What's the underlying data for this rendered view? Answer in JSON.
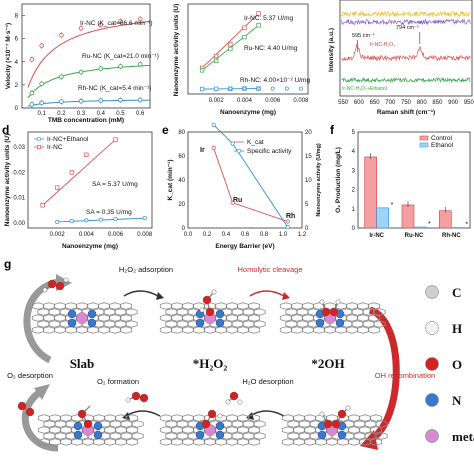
{
  "panels": {
    "a": {
      "letter": "",
      "xlabel": "TMB concentration (mM)",
      "ylabel": "Velocity (×10⁻⁷ M·s⁻¹)",
      "xticks": [
        "0.1",
        "0.2",
        "0.3",
        "0.4",
        "0.5",
        "0.6"
      ],
      "yticks": [
        "0",
        "2",
        "4",
        "6",
        "8"
      ],
      "series": [
        {
          "name": "Ir-NC (K_cat=66.6 min⁻¹)",
          "color": "#e05050",
          "values": [
            4.2,
            5.4,
            6.3,
            6.9,
            7.2,
            7.5,
            7.7
          ]
        },
        {
          "name": "Ru-NC (K_cat=21.0 min⁻¹)",
          "color": "#3aa84a",
          "values": [
            1.3,
            2.1,
            2.7,
            3.1,
            3.4,
            3.6,
            3.8
          ]
        },
        {
          "name": "Rh-NC (K_cat=5.4 min⁻¹)",
          "color": "#2f8fd0",
          "values": [
            0.3,
            0.45,
            0.55,
            0.6,
            0.65,
            0.68,
            0.7
          ]
        }
      ],
      "x": [
        0.05,
        0.1,
        0.2,
        0.3,
        0.4,
        0.5,
        0.6
      ]
    },
    "b": {
      "letter": "",
      "xlabel": "Nanoenzyme (mg)",
      "ylabel": "Nanoenzyme activity units (U)",
      "xticks": [
        "0.002",
        "0.004",
        "0.006",
        "0.008"
      ],
      "annotations": [
        "Ir-NC: 5.37 U/mg",
        "Ru-NC: 4.40 U/mg",
        "Rh-NC: 4.00×10⁻² U/mg"
      ],
      "series": [
        {
          "name": "Ir-NC",
          "color": "#e05050",
          "values": [
            0.009,
            0.014,
            0.019,
            0.026,
            0.032
          ]
        },
        {
          "name": "Ru-NC",
          "color": "#3aa84a",
          "values": [
            0.008,
            0.012,
            0.017,
            0.022,
            0.027
          ]
        },
        {
          "name": "Rh-NC",
          "color": "#2f8fd0",
          "values": [
            0.0001,
            0.0002,
            0.0002,
            0.0003,
            0.0003
          ]
        }
      ],
      "x": [
        0.001,
        0.002,
        0.003,
        0.004,
        0.005
      ]
    },
    "c": {
      "letter": "",
      "xlabel": "Raman shift (cm⁻¹)",
      "ylabel": "Intensity (a.u.)",
      "xticks": [
        "550",
        "600",
        "650",
        "700",
        "750",
        "800",
        "850",
        "900",
        "950"
      ],
      "annotations": [
        "595 cm⁻¹",
        "794 cm⁻¹",
        "Ir-NC-H₂O₂",
        "Ir-NC-H₂O₂+Ethanol"
      ]
    },
    "d": {
      "letter": "d",
      "xlabel": "Nanoenzyme (mg)",
      "ylabel": "Nanoenzyme activity units (U)",
      "xticks": [
        "0.002",
        "0.004",
        "0.006",
        "0.008"
      ],
      "yticks": [
        "0.00",
        "0.01",
        "0.02",
        "0.03"
      ],
      "legend": [
        "Ir-NC+Ethanol",
        "Ir-NC"
      ],
      "annotations": [
        "SA = 5.37 U/mg",
        "SA = 0.35 U/mg"
      ],
      "series": [
        {
          "name": "Ir-NC",
          "color": "#e05050",
          "values": [
            0.007,
            0.014,
            0.02,
            0.027,
            0.033
          ]
        },
        {
          "name": "Ir-NC+Ethanol",
          "color": "#2f8fd0",
          "values": [
            0.0004,
            0.0007,
            0.001,
            0.0013,
            0.0016,
            0.0019
          ]
        }
      ],
      "x_red": [
        0.001,
        0.002,
        0.003,
        0.004,
        0.006
      ],
      "x_blue": [
        0.002,
        0.003,
        0.004,
        0.005,
        0.006,
        0.008
      ]
    },
    "e": {
      "letter": "e",
      "xlabel": "Energy Barrier (eV)",
      "ylabel_left": "K_cat (min⁻¹)",
      "ylabel_right": "Nanoenzyme activity (U/mg)",
      "xticks": [
        "0.0",
        "0.2",
        "0.4",
        "0.6",
        "0.8",
        "1.0",
        "1.2"
      ],
      "yticks_left": [
        "0",
        "20",
        "40",
        "60",
        "80"
      ],
      "yticks_right": [
        "0",
        "5",
        "10",
        "15",
        "20"
      ],
      "legend": [
        "K_cat",
        "Specific activity"
      ],
      "points": [
        "Ir",
        "Ru",
        "Rh"
      ],
      "x": [
        0.27,
        0.47,
        1.05
      ],
      "kcat": [
        66.6,
        21.0,
        5.4
      ],
      "activity": [
        5.37,
        4.4,
        0.04
      ]
    },
    "f": {
      "letter": "f",
      "ylabel": "O₂ Production (mg/L)",
      "categories": [
        "Ir-NC",
        "Ru-NC",
        "Rh-NC"
      ],
      "legend": [
        "Control",
        "Ethanol"
      ],
      "yticks": [
        "0",
        "1",
        "2",
        "3",
        "4",
        "5"
      ],
      "control": [
        3.7,
        1.2,
        0.9
      ],
      "ethanol": [
        1.05,
        0.05,
        0.02
      ],
      "sig": [
        "*",
        "*",
        "*"
      ]
    },
    "g": {
      "letter": "g",
      "states": [
        "Slab",
        "*H₂O₂",
        "*2OH"
      ],
      "steps": [
        "H₂O₂ adsorption",
        "Homolytic cleavage",
        "OH recombination",
        "H₂O desorption",
        "O₂ formation",
        "O₂ desorption"
      ],
      "legend": [
        {
          "label": "C",
          "color": "#cfcfcf"
        },
        {
          "label": "H",
          "color": "#f4f4f4"
        },
        {
          "label": "O",
          "color": "#d82020"
        },
        {
          "label": "N",
          "color": "#3a78c8"
        },
        {
          "label": "metal",
          "color": "#d88ad0"
        }
      ],
      "accent_red": "#cc2a2a",
      "accent_gray": "#888888"
    }
  }
}
